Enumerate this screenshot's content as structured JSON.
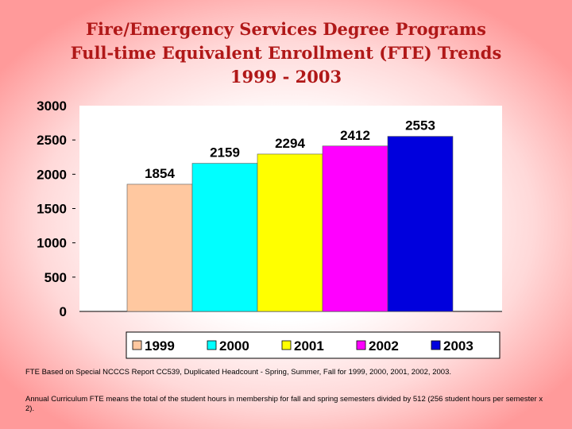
{
  "title": {
    "line1": "Fire/Emergency Services Degree Programs",
    "line2": "Full-time Equivalent Enrollment (FTE) Trends",
    "line3": "1999 - 2003"
  },
  "chart_data": {
    "type": "bar",
    "categories": [
      "1999",
      "2000",
      "2001",
      "2002",
      "2003"
    ],
    "values": [
      1854,
      2159,
      2294,
      2412,
      2553
    ],
    "colors": [
      "#ffc8a0",
      "#00ffff",
      "#ffff00",
      "#ff00ff",
      "#0000dd"
    ],
    "data_labels": [
      "1854",
      "2159",
      "2294",
      "2412",
      "2553"
    ],
    "ylim": [
      0,
      3000
    ],
    "yticks": [
      0,
      500,
      1000,
      1500,
      2000,
      2500,
      3000
    ],
    "grid": false,
    "legend": "bottom"
  },
  "notes": {
    "note1": "FTE Based on Special NCCCS Report CC539, Duplicated Headcount - Spring, Summer, Fall for 1999, 2000, 2001, 2002, 2003.",
    "note2": "Annual Curriculum FTE means the total of the student hours in membership for fall and spring semesters divided by 512 (256 student hours per semester x 2)."
  }
}
